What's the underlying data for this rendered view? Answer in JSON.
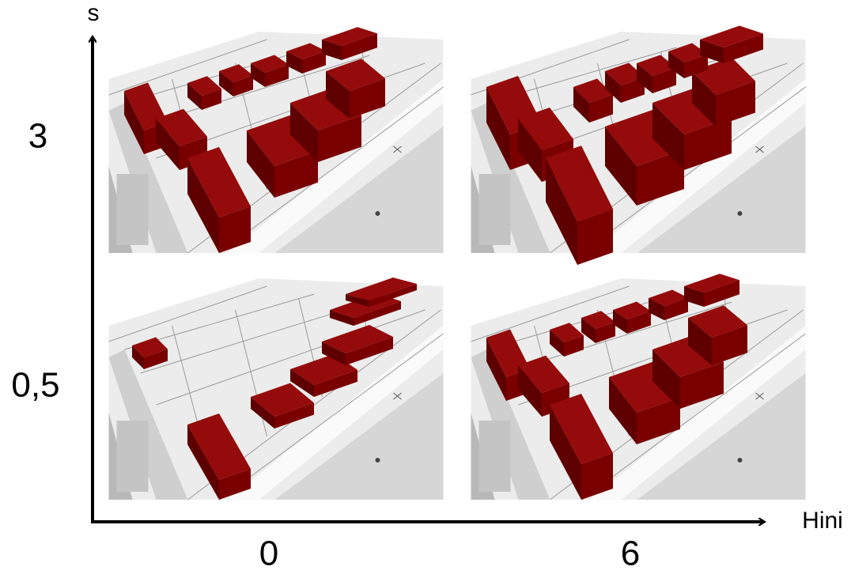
{
  "axes": {
    "y_label": "s",
    "x_label": "Hini",
    "y_values": [
      "3",
      "0,5"
    ],
    "x_values": [
      "0",
      "6"
    ]
  }
}
